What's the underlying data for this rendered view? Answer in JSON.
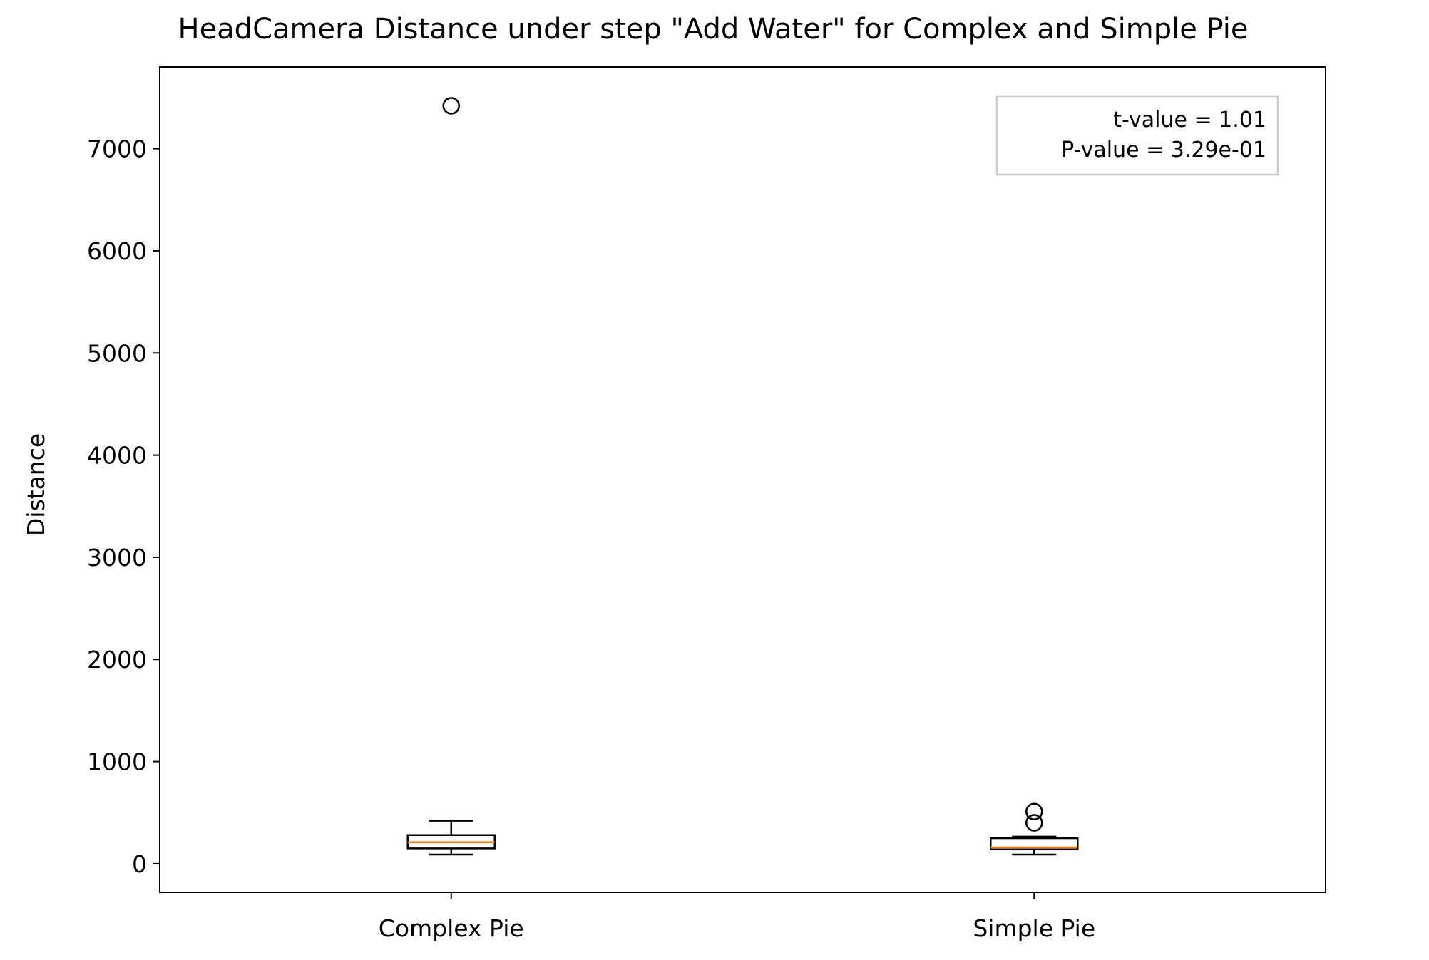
{
  "chart_data": {
    "type": "boxplot",
    "title": "HeadCamera Distance under step \"Add Water\" for Complex and Simple Pie",
    "xlabel": "",
    "ylabel": "Distance",
    "ylim": [
      -280,
      7800
    ],
    "yticks": [
      0,
      1000,
      2000,
      3000,
      4000,
      5000,
      6000,
      7000
    ],
    "categories": [
      "Complex Pie",
      "Simple Pie"
    ],
    "boxes": [
      {
        "category": "Complex Pie",
        "whisker_low": 90,
        "q1": 150,
        "median": 210,
        "q3": 280,
        "whisker_high": 420,
        "outliers": [
          7420
        ]
      },
      {
        "category": "Simple Pie",
        "whisker_low": 90,
        "q1": 140,
        "median": 160,
        "q3": 250,
        "whisker_high": 265,
        "outliers": [
          400,
          510
        ]
      }
    ],
    "annotation": {
      "lines": [
        "t-value = 1.01",
        "P-value = 3.29e-01"
      ],
      "placement": "top-right"
    },
    "grid": false,
    "colors": {
      "median": "#ff7f0e",
      "box": "#000000",
      "annotation_border": "#cccccc"
    }
  }
}
